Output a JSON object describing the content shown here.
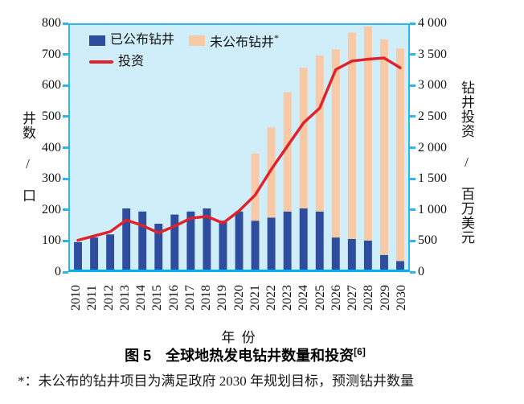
{
  "figure": {
    "caption": "图 5　全球地热发电钻井数量和投资",
    "caption_ref": "[6]",
    "footnote": "*：未公布的钻井项目为满足政府 2030 年规划目标，预测钻井数量"
  },
  "colors": {
    "bar_announced": "#2e4d9e",
    "bar_unannounced": "#f9c9a6",
    "line_investment": "#e0222a",
    "plot_background": "#cfeef9",
    "axis_frame": "#2db5e9",
    "axis_bottom": "#00b0f0",
    "text": "#111111"
  },
  "chart_data": {
    "type": "bar",
    "subtype": "stacked bars with overlaid line",
    "x": [
      "2010",
      "2011",
      "2012",
      "2013",
      "2014",
      "2015",
      "2016",
      "2017",
      "2018",
      "2019",
      "2020",
      "2021",
      "2022",
      "2023",
      "2024",
      "2025",
      "2026",
      "2027",
      "2028",
      "2029",
      "2030"
    ],
    "xlabel": "年 份",
    "ylabel_left": "井数 / 口",
    "ylabel_right": "钻井投资 / 百万美元",
    "ylim_left": [
      0,
      800
    ],
    "ylim_right": [
      0,
      4000
    ],
    "yticks_left": [
      "800",
      "700",
      "600",
      "500",
      "400",
      "300",
      "200",
      "100",
      "0"
    ],
    "yticks_right": [
      "4 000",
      "3 500",
      "3 000",
      "2 500",
      "2 000",
      "1 500",
      "1 000",
      "500",
      "0"
    ],
    "grid": false,
    "legend_position": "inside top-left",
    "series": [
      {
        "name": "已公布钻井",
        "type": "bar",
        "stack": true,
        "axis": "left",
        "color": "#2e4d9e",
        "values": [
          90,
          105,
          115,
          200,
          190,
          150,
          180,
          190,
          200,
          160,
          190,
          160,
          170,
          190,
          200,
          190,
          105,
          100,
          95,
          48,
          28
        ]
      },
      {
        "name": "未公布钻井",
        "legend_suffix": "*",
        "type": "bar",
        "stack": true,
        "axis": "left",
        "color": "#f9c9a6",
        "values": [
          0,
          0,
          0,
          0,
          0,
          0,
          0,
          0,
          0,
          0,
          0,
          220,
          295,
          390,
          460,
          510,
          615,
          675,
          700,
          705,
          695
        ]
      },
      {
        "name": "投资",
        "type": "line",
        "axis": "right",
        "color": "#e0222a",
        "values": [
          480,
          550,
          620,
          810,
          720,
          600,
          710,
          840,
          870,
          760,
          960,
          1220,
          1640,
          2020,
          2400,
          2640,
          3270,
          3410,
          3440,
          3460,
          3300
        ]
      }
    ]
  }
}
